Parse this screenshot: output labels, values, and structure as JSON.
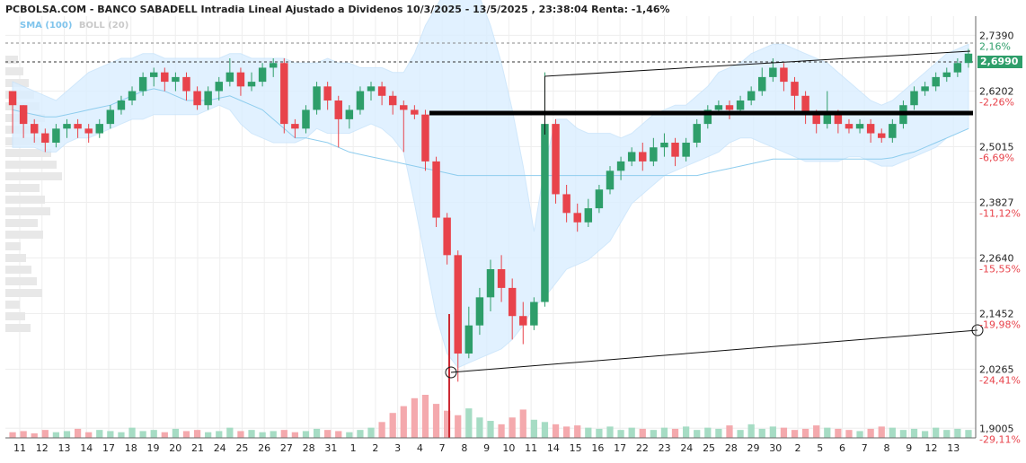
{
  "header": {
    "title": "PCBOLSA.COM - BANCO SABADELL Intradia Lineal Ajustado a Dividenos 10/3/2025 - 13/5/2025 , 23:38:04 Renta: -1,46%",
    "sma_label": "SMA (100)",
    "boll_label": "BOLL (20)"
  },
  "colors": {
    "up": "#2e9e6a",
    "down": "#e8434b",
    "vol_up": "#a6dcc4",
    "vol_down": "#f4a9ad",
    "boll_fill": "#dcefff",
    "sma": "#8fcdee",
    "last_price_bg": "#2e9e6a",
    "axis_pct": "#e8434b",
    "axis_pct_pos": "#2e9e6a"
  },
  "last_price": "2,6990",
  "chart_data": {
    "type": "candlestick",
    "y_axis": {
      "range": [
        1.88,
        2.78
      ],
      "ticks": [
        {
          "value": 2.739,
          "label": "2,7390",
          "pct": "2,16%"
        },
        {
          "value": 2.6202,
          "label": "2,6202",
          "pct": "-2,26%"
        },
        {
          "value": 2.5015,
          "label": "2,5015",
          "pct": "-6,69%"
        },
        {
          "value": 2.3827,
          "label": "2,3827",
          "pct": "-11,12%"
        },
        {
          "value": 2.264,
          "label": "2,2640",
          "pct": "-15,55%"
        },
        {
          "value": 2.1452,
          "label": "2,1452",
          "pct": "-19,98%"
        },
        {
          "value": 2.0265,
          "label": "2,0265",
          "pct": "-24,41%"
        },
        {
          "value": 1.9005,
          "label": "1,9005",
          "pct": "-29,11%"
        }
      ]
    },
    "x_labels": [
      "11",
      "12",
      "13",
      "14",
      "17",
      "18",
      "19",
      "20",
      "21",
      "24",
      "25",
      "26",
      "27",
      "28",
      "31",
      "1",
      "2",
      "3",
      "4",
      "7",
      "8",
      "9",
      "10",
      "11",
      "14",
      "15",
      "16",
      "17",
      "22",
      "23",
      "24",
      "25",
      "28",
      "29",
      "30",
      "2",
      "5",
      "6",
      "7",
      "8",
      "9",
      "12",
      "13"
    ],
    "candles": [
      [
        2.62,
        2.59,
        2.61,
        2.53
      ],
      [
        2.59,
        2.55,
        2.59,
        2.52
      ],
      [
        2.55,
        2.53,
        2.56,
        2.51
      ],
      [
        2.53,
        2.51,
        2.54,
        2.49
      ],
      [
        2.51,
        2.54,
        2.55,
        2.5
      ],
      [
        2.54,
        2.55,
        2.56,
        2.52
      ],
      [
        2.55,
        2.54,
        2.56,
        2.52
      ],
      [
        2.54,
        2.53,
        2.55,
        2.51
      ],
      [
        2.53,
        2.55,
        2.56,
        2.52
      ],
      [
        2.55,
        2.58,
        2.59,
        2.54
      ],
      [
        2.58,
        2.6,
        2.61,
        2.57
      ],
      [
        2.6,
        2.62,
        2.63,
        2.59
      ],
      [
        2.62,
        2.65,
        2.66,
        2.61
      ],
      [
        2.65,
        2.66,
        2.67,
        2.63
      ],
      [
        2.66,
        2.64,
        2.67,
        2.62
      ],
      [
        2.64,
        2.65,
        2.66,
        2.62
      ],
      [
        2.65,
        2.62,
        2.66,
        2.6
      ],
      [
        2.62,
        2.59,
        2.63,
        2.58
      ],
      [
        2.59,
        2.62,
        2.63,
        2.58
      ],
      [
        2.62,
        2.64,
        2.65,
        2.6
      ],
      [
        2.64,
        2.66,
        2.69,
        2.63
      ],
      [
        2.66,
        2.63,
        2.67,
        2.61
      ],
      [
        2.63,
        2.64,
        2.66,
        2.62
      ],
      [
        2.64,
        2.67,
        2.68,
        2.63
      ],
      [
        2.67,
        2.68,
        2.69,
        2.65
      ],
      [
        2.68,
        2.55,
        2.69,
        2.53
      ],
      [
        2.55,
        2.54,
        2.56,
        2.52
      ],
      [
        2.54,
        2.58,
        2.59,
        2.53
      ],
      [
        2.58,
        2.63,
        2.64,
        2.57
      ],
      [
        2.63,
        2.6,
        2.64,
        2.58
      ],
      [
        2.6,
        2.56,
        2.61,
        2.5
      ],
      [
        2.56,
        2.58,
        2.59,
        2.54
      ],
      [
        2.58,
        2.62,
        2.63,
        2.57
      ],
      [
        2.62,
        2.63,
        2.64,
        2.6
      ],
      [
        2.63,
        2.61,
        2.64,
        2.59
      ],
      [
        2.61,
        2.59,
        2.62,
        2.57
      ],
      [
        2.59,
        2.58,
        2.6,
        2.49
      ],
      [
        2.58,
        2.57,
        2.59,
        2.56
      ],
      [
        2.57,
        2.47,
        2.58,
        2.45
      ],
      [
        2.47,
        2.35,
        2.48,
        2.33
      ],
      [
        2.35,
        2.27,
        2.36,
        2.25
      ],
      [
        2.27,
        2.06,
        2.28,
        2.0
      ],
      [
        2.06,
        2.12,
        2.16,
        2.05
      ],
      [
        2.12,
        2.18,
        2.2,
        2.1
      ],
      [
        2.18,
        2.24,
        2.26,
        2.15
      ],
      [
        2.24,
        2.2,
        2.27,
        2.17
      ],
      [
        2.2,
        2.14,
        2.22,
        2.09
      ],
      [
        2.14,
        2.12,
        2.17,
        2.08
      ],
      [
        2.12,
        2.17,
        2.18,
        2.11
      ],
      [
        2.17,
        2.55,
        2.66,
        2.16
      ],
      [
        2.55,
        2.4,
        2.56,
        2.38
      ],
      [
        2.4,
        2.36,
        2.42,
        2.34
      ],
      [
        2.36,
        2.34,
        2.38,
        2.32
      ],
      [
        2.34,
        2.37,
        2.39,
        2.33
      ],
      [
        2.37,
        2.41,
        2.42,
        2.36
      ],
      [
        2.41,
        2.45,
        2.46,
        2.4
      ],
      [
        2.45,
        2.47,
        2.48,
        2.43
      ],
      [
        2.47,
        2.49,
        2.5,
        2.46
      ],
      [
        2.49,
        2.47,
        2.51,
        2.45
      ],
      [
        2.47,
        2.5,
        2.52,
        2.46
      ],
      [
        2.5,
        2.51,
        2.53,
        2.48
      ],
      [
        2.51,
        2.48,
        2.52,
        2.46
      ],
      [
        2.48,
        2.51,
        2.52,
        2.47
      ],
      [
        2.51,
        2.55,
        2.56,
        2.5
      ],
      [
        2.55,
        2.58,
        2.59,
        2.54
      ],
      [
        2.58,
        2.59,
        2.6,
        2.57
      ],
      [
        2.59,
        2.58,
        2.6,
        2.56
      ],
      [
        2.58,
        2.6,
        2.61,
        2.57
      ],
      [
        2.6,
        2.62,
        2.63,
        2.59
      ],
      [
        2.62,
        2.65,
        2.67,
        2.61
      ],
      [
        2.65,
        2.67,
        2.69,
        2.64
      ],
      [
        2.67,
        2.64,
        2.68,
        2.62
      ],
      [
        2.64,
        2.61,
        2.65,
        2.58
      ],
      [
        2.61,
        2.57,
        2.62,
        2.55
      ],
      [
        2.57,
        2.55,
        2.58,
        2.53
      ],
      [
        2.55,
        2.57,
        2.62,
        2.54
      ],
      [
        2.57,
        2.55,
        2.58,
        2.53
      ],
      [
        2.55,
        2.54,
        2.56,
        2.53
      ],
      [
        2.54,
        2.55,
        2.56,
        2.53
      ],
      [
        2.55,
        2.53,
        2.56,
        2.51
      ],
      [
        2.53,
        2.52,
        2.54,
        2.51
      ],
      [
        2.52,
        2.55,
        2.56,
        2.51
      ],
      [
        2.55,
        2.59,
        2.6,
        2.54
      ],
      [
        2.59,
        2.62,
        2.63,
        2.58
      ],
      [
        2.62,
        2.63,
        2.64,
        2.61
      ],
      [
        2.63,
        2.65,
        2.66,
        2.62
      ],
      [
        2.65,
        2.66,
        2.67,
        2.64
      ],
      [
        2.66,
        2.68,
        2.69,
        2.65
      ],
      [
        2.68,
        2.7,
        2.71,
        2.67
      ]
    ],
    "volumes": [
      5,
      6,
      4,
      7,
      5,
      6,
      8,
      5,
      7,
      6,
      5,
      9,
      6,
      7,
      5,
      8,
      6,
      7,
      5,
      6,
      9,
      6,
      7,
      5,
      6,
      7,
      5,
      6,
      8,
      7,
      6,
      5,
      7,
      9,
      14,
      22,
      28,
      35,
      38,
      30,
      24,
      20,
      26,
      18,
      15,
      12,
      18,
      25,
      16,
      14,
      12,
      10,
      11,
      9,
      8,
      10,
      7,
      9,
      8,
      7,
      9,
      8,
      10,
      7,
      9,
      8,
      11,
      7,
      12,
      8,
      10,
      9,
      7,
      8,
      11,
      9,
      8,
      7,
      6,
      8,
      10,
      9,
      7,
      8,
      6,
      9,
      7,
      8,
      7
    ],
    "sma": [
      2.58,
      2.575,
      2.57,
      2.565,
      2.565,
      2.57,
      2.575,
      2.58,
      2.585,
      2.59,
      2.6,
      2.61,
      2.62,
      2.625,
      2.62,
      2.61,
      2.6,
      2.6,
      2.6,
      2.605,
      2.61,
      2.6,
      2.59,
      2.58,
      2.56,
      2.54,
      2.52,
      2.52,
      2.515,
      2.51,
      2.5,
      2.49,
      2.485,
      2.48,
      2.475,
      2.47,
      2.465,
      2.46,
      2.455,
      2.45,
      2.445,
      2.44,
      2.44,
      2.44,
      2.44,
      2.44,
      2.44,
      2.44,
      2.44,
      2.44,
      2.44,
      2.44,
      2.44,
      2.44,
      2.44,
      2.44,
      2.44,
      2.44,
      2.44,
      2.44,
      2.44,
      2.44,
      2.44,
      2.44,
      2.445,
      2.45,
      2.455,
      2.46,
      2.465,
      2.47,
      2.475,
      2.475,
      2.475,
      2.475,
      2.475,
      2.475,
      2.475,
      2.475,
      2.475,
      2.475,
      2.475,
      2.478,
      2.485,
      2.49,
      2.5,
      2.51,
      2.52,
      2.53,
      2.54
    ],
    "boll_upper": [
      2.64,
      2.63,
      2.62,
      2.61,
      2.6,
      2.62,
      2.64,
      2.66,
      2.67,
      2.68,
      2.69,
      2.69,
      2.7,
      2.7,
      2.69,
      2.69,
      2.69,
      2.69,
      2.69,
      2.69,
      2.7,
      2.7,
      2.69,
      2.69,
      2.69,
      2.69,
      2.68,
      2.68,
      2.68,
      2.69,
      2.68,
      2.68,
      2.67,
      2.67,
      2.67,
      2.66,
      2.66,
      2.7,
      2.76,
      2.8,
      2.84,
      2.86,
      2.85,
      2.82,
      2.76,
      2.68,
      2.58,
      2.46,
      2.32,
      2.46,
      2.56,
      2.56,
      2.54,
      2.53,
      2.53,
      2.53,
      2.52,
      2.53,
      2.55,
      2.57,
      2.58,
      2.59,
      2.59,
      2.61,
      2.63,
      2.66,
      2.67,
      2.68,
      2.7,
      2.71,
      2.72,
      2.72,
      2.71,
      2.7,
      2.69,
      2.68,
      2.66,
      2.64,
      2.62,
      2.6,
      2.59,
      2.6,
      2.62,
      2.64,
      2.66,
      2.68,
      2.7,
      2.71,
      2.72
    ],
    "boll_lower": [
      2.5,
      2.5,
      2.5,
      2.49,
      2.49,
      2.51,
      2.52,
      2.52,
      2.53,
      2.54,
      2.55,
      2.56,
      2.56,
      2.57,
      2.57,
      2.57,
      2.57,
      2.57,
      2.58,
      2.59,
      2.58,
      2.55,
      2.53,
      2.52,
      2.51,
      2.51,
      2.51,
      2.52,
      2.54,
      2.53,
      2.53,
      2.53,
      2.54,
      2.55,
      2.54,
      2.52,
      2.49,
      2.38,
      2.26,
      2.14,
      2.06,
      2.03,
      2.04,
      2.05,
      2.06,
      2.07,
      2.09,
      2.12,
      2.16,
      2.18,
      2.21,
      2.24,
      2.25,
      2.26,
      2.28,
      2.3,
      2.34,
      2.38,
      2.4,
      2.42,
      2.44,
      2.45,
      2.46,
      2.47,
      2.48,
      2.49,
      2.51,
      2.52,
      2.52,
      2.51,
      2.5,
      2.49,
      2.48,
      2.47,
      2.47,
      2.47,
      2.47,
      2.48,
      2.48,
      2.47,
      2.46,
      2.46,
      2.47,
      2.48,
      2.49,
      2.5,
      2.52,
      2.53,
      2.54
    ]
  }
}
